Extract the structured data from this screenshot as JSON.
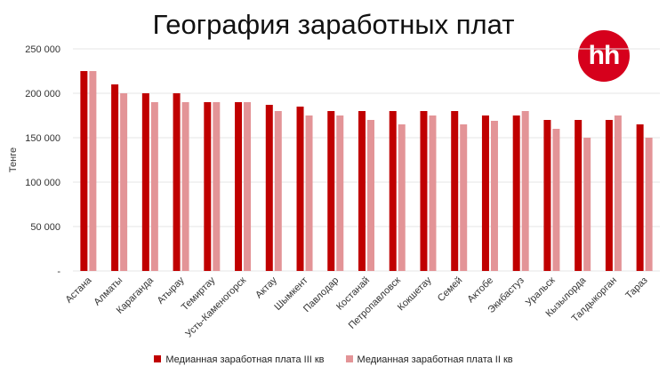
{
  "chart_data": {
    "type": "bar",
    "title": "География заработных плат",
    "ylabel": "Тенге",
    "ylim": [
      0,
      250000
    ],
    "yticks": [
      "-",
      "50 000",
      "100 000",
      "150 000",
      "200 000",
      "250 000"
    ],
    "grid": true,
    "legend": "bottom",
    "categories": [
      "Астана",
      "Алматы",
      "Караганда",
      "Атырау",
      "Темиртау",
      "Усть-Каменогорск",
      "Актау",
      "Шымкент",
      "Павлодар",
      "Костанай",
      "Петропавловск",
      "Кокшетау",
      "Семей",
      "Актобе",
      "Экибастуз",
      "Уральск",
      "Кызылорда",
      "Талдыкорган",
      "Тараз"
    ],
    "series": [
      {
        "name": "Медианная заработная плата III кв",
        "color": "#c00000",
        "values": [
          225000,
          210000,
          200000,
          200000,
          190000,
          190000,
          187000,
          185000,
          180000,
          180000,
          180000,
          180000,
          180000,
          175000,
          175000,
          170000,
          170000,
          170000,
          165000
        ]
      },
      {
        "name": "Медианная заработная плата II кв",
        "color": "#e39497",
        "values": [
          225000,
          200000,
          190000,
          190000,
          190000,
          190000,
          180000,
          175000,
          175000,
          170000,
          165000,
          175000,
          165000,
          169000,
          180000,
          160000,
          150000,
          175000,
          150000
        ]
      }
    ]
  },
  "logo": {
    "text": "hh",
    "color": "#d6001c"
  }
}
